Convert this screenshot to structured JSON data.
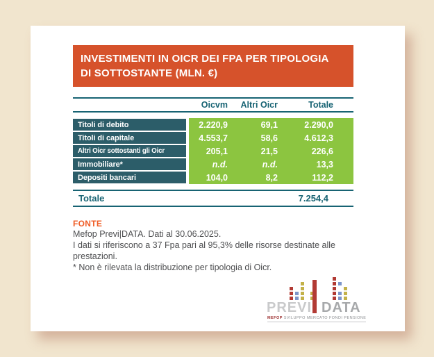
{
  "page": {
    "background_color": "#F1E5CE",
    "card_color": "#FFFFFF"
  },
  "header": {
    "title_line1": "INVESTIMENTI IN OICR DEI FPA PER TIPOLOGIA",
    "title_line2": "DI SOTTOSTANTE (MLN. €)",
    "background_color": "#D6522B",
    "text_color": "#FFFFFF"
  },
  "chart_data": {
    "type": "table",
    "title": "INVESTIMENTI IN OICR DEI FPA PER TIPOLOGIA DI SOTTOSTANTE (MLN. €)",
    "columns": [
      "Oicvm",
      "Altri Oicr",
      "Totale"
    ],
    "rows": [
      [
        "Titoli di debito",
        "2.220,9",
        "69,1",
        "2.290,0"
      ],
      [
        "Titoli di capitale",
        "4.553,7",
        "58,6",
        "4.612,3"
      ],
      [
        "Altri Oicr sottostanti gli Oicr",
        "205,1",
        "21,5",
        "226,6"
      ],
      [
        "Immobiliare*",
        "n.d.",
        "n.d.",
        "13,3"
      ],
      [
        "Depositi bancari",
        "104,0",
        "8,2",
        "112,2"
      ]
    ],
    "footer": [
      "Totale",
      "7.254,4"
    ],
    "colors": {
      "row_label_background": "#2C5D69",
      "value_background": "#8CC540",
      "teal_text_and_rules": "#176373"
    }
  },
  "source": {
    "heading": "FONTE",
    "heading_color": "#EF5B24",
    "lines": [
      "Mefop Previ|DATA. Dati al 30.06.2025.",
      "I dati si riferiscono a 37 Fpa  pari al 95,3% delle risorse destinate alle",
      "prestazioni.",
      "* Non è rilevata la distribuzione per tipologia di Oicr."
    ]
  },
  "logo": {
    "wordmark_left": "PREVI",
    "wordmark_right": "DATA",
    "tagline_bold": "MEFOP",
    "tagline_rest": " SVILUPPO MERCATO FONDI PENSIONE",
    "colors": {
      "red": "#B23A34",
      "blue": "#7C95CA",
      "yellow": "#C3B148",
      "none": "transparent"
    },
    "pattern": [
      {
        "color": "red",
        "rows": [
          2,
          3,
          4
        ]
      },
      {
        "color": "blue",
        "rows": [
          3,
          4
        ]
      },
      {
        "color": "yellow",
        "rows": [
          1,
          2,
          3,
          4
        ]
      },
      {
        "color": "yellow",
        "rows": [
          3,
          4
        ],
        "gap_before": 6
      },
      {
        "color": "red",
        "rows": [
          0,
          1,
          2,
          3,
          4
        ],
        "gap_before": 24
      },
      {
        "color": "blue",
        "rows": [
          1,
          3,
          4
        ]
      },
      {
        "color": "yellow",
        "rows": [
          2,
          3,
          4
        ]
      }
    ]
  }
}
